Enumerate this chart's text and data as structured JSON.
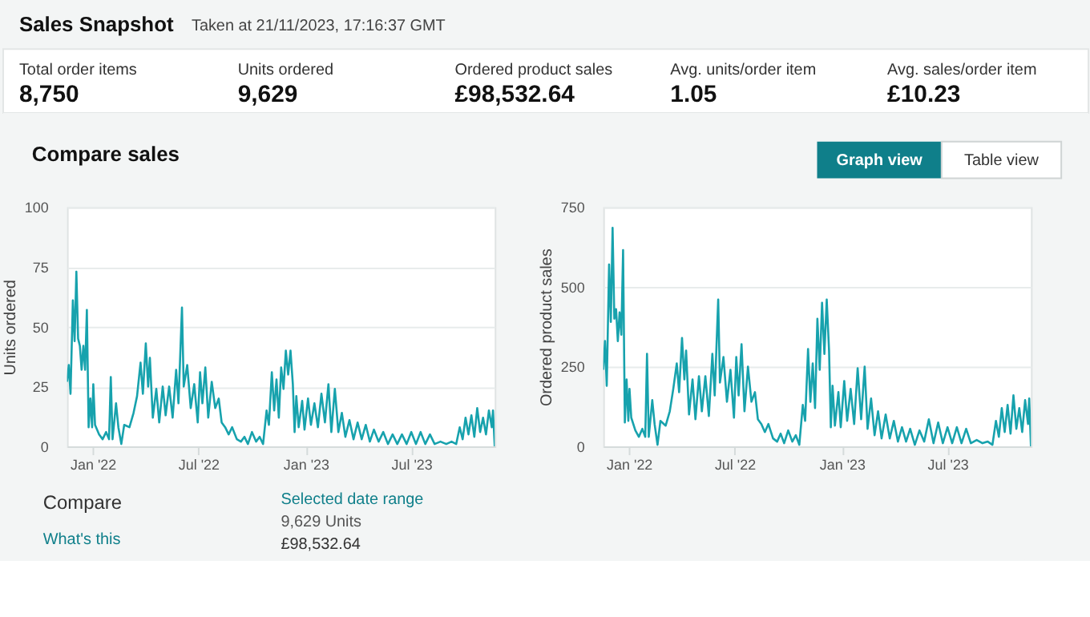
{
  "chart_data": [
    {
      "type": "other",
      "title": "Sales Snapshot",
      "subtitle": "Taken at 21/11/2023, 17:16:37 GMT",
      "annotations": [
        "Total order items",
        "8,750",
        "Units ordered",
        "9,629",
        "Ordered product sales",
        "£98,532.64",
        "Avg. units/order item",
        "1.05",
        "Avg. sales/order item",
        "£10.23",
        "Compare sales",
        "Graph view",
        "Table view"
      ]
    },
    {
      "type": "line",
      "ylabel": "Units ordered",
      "xlim": [
        "2021-11-18",
        "2023-11-21"
      ],
      "xticks": [
        {
          "value": "2022-01-01",
          "label": "Jan '22"
        },
        {
          "value": "2022-07-01",
          "label": "Jul '22"
        },
        {
          "value": "2023-01-01",
          "label": "Jan '23"
        },
        {
          "value": "2023-07-01",
          "label": "Jul '23"
        }
      ],
      "ylim": [
        0,
        100
      ],
      "yticks": [
        0,
        25,
        50,
        75,
        100
      ],
      "grid": "y",
      "x": [
        "2021-11-18",
        "2021-11-21",
        "2021-11-24",
        "2021-11-28",
        "2021-12-01",
        "2021-12-04",
        "2021-12-07",
        "2021-12-10",
        "2021-12-13",
        "2021-12-16",
        "2021-12-19",
        "2021-12-22",
        "2021-12-25",
        "2021-12-28",
        "2021-12-31",
        "2022-01-02",
        "2022-01-05",
        "2022-01-12",
        "2022-01-18",
        "2022-01-24",
        "2022-01-29",
        "2022-02-01",
        "2022-02-04",
        "2022-02-10",
        "2022-02-14",
        "2022-02-19",
        "2022-02-24",
        "2022-03-05",
        "2022-03-12",
        "2022-03-18",
        "2022-03-24",
        "2022-03-28",
        "2022-04-02",
        "2022-04-06",
        "2022-04-09",
        "2022-04-14",
        "2022-04-20",
        "2022-04-25",
        "2022-05-01",
        "2022-05-06",
        "2022-05-12",
        "2022-05-18",
        "2022-05-24",
        "2022-05-28",
        "2022-06-03",
        "2022-06-06",
        "2022-06-12",
        "2022-06-18",
        "2022-06-24",
        "2022-06-30",
        "2022-07-04",
        "2022-07-08",
        "2022-07-13",
        "2022-07-18",
        "2022-07-24",
        "2022-07-30",
        "2022-08-05",
        "2022-08-10",
        "2022-08-16",
        "2022-08-22",
        "2022-08-28",
        "2022-09-05",
        "2022-09-12",
        "2022-09-18",
        "2022-09-24",
        "2022-10-01",
        "2022-10-08",
        "2022-10-14",
        "2022-10-20",
        "2022-10-26",
        "2022-10-30",
        "2022-11-04",
        "2022-11-08",
        "2022-11-12",
        "2022-11-16",
        "2022-11-20",
        "2022-11-24",
        "2022-11-28",
        "2022-12-02",
        "2022-12-06",
        "2022-12-10",
        "2022-12-13",
        "2022-12-16",
        "2022-12-20",
        "2022-12-26",
        "2022-12-30",
        "2023-01-05",
        "2023-01-10",
        "2023-01-16",
        "2023-01-22",
        "2023-01-28",
        "2023-02-03",
        "2023-02-09",
        "2023-02-14",
        "2023-02-20",
        "2023-02-26",
        "2023-03-04",
        "2023-03-10",
        "2023-03-17",
        "2023-03-24",
        "2023-03-31",
        "2023-04-07",
        "2023-04-14",
        "2023-04-21",
        "2023-04-28",
        "2023-05-06",
        "2023-05-14",
        "2023-05-22",
        "2023-05-30",
        "2023-06-07",
        "2023-06-15",
        "2023-06-23",
        "2023-07-01",
        "2023-07-09",
        "2023-07-17",
        "2023-07-25",
        "2023-08-02",
        "2023-08-10",
        "2023-08-20",
        "2023-08-30",
        "2023-09-08",
        "2023-09-16",
        "2023-09-22",
        "2023-09-27",
        "2023-10-02",
        "2023-10-07",
        "2023-10-12",
        "2023-10-17",
        "2023-10-22",
        "2023-10-27",
        "2023-11-01",
        "2023-11-06",
        "2023-11-11",
        "2023-11-16",
        "2023-11-18",
        "2023-11-21"
      ],
      "series": [
        {
          "color": "#17a2ad",
          "values": [
            27,
            34,
            22,
            61,
            44,
            73,
            45,
            42,
            32,
            42,
            32,
            57,
            8,
            20,
            8,
            26,
            9,
            5,
            3,
            6,
            3,
            29,
            3,
            18,
            8,
            1,
            9,
            8,
            14,
            21,
            35,
            22,
            43,
            25,
            37,
            12,
            24,
            10,
            25,
            13,
            25,
            12,
            32,
            18,
            58,
            25,
            34,
            16,
            26,
            10,
            31,
            18,
            33,
            12,
            27,
            16,
            20,
            10,
            8,
            5,
            8,
            3,
            2,
            4,
            1,
            6,
            2,
            4,
            1,
            15,
            9,
            31,
            15,
            28,
            12,
            33,
            24,
            40,
            30,
            40,
            26,
            6,
            21,
            8,
            19,
            7,
            20,
            9,
            18,
            8,
            22,
            10,
            26,
            6,
            24,
            6,
            14,
            4,
            11,
            3,
            10,
            3,
            9,
            2,
            7,
            2,
            6,
            1,
            5,
            1,
            5,
            1,
            6,
            1,
            6,
            1,
            5,
            1,
            2,
            1,
            2,
            1,
            8,
            3,
            12,
            5,
            13,
            4,
            16,
            6,
            12,
            5,
            15,
            8,
            15,
            0
          ]
        }
      ]
    },
    {
      "type": "line",
      "ylabel": "Ordered product sales",
      "xlim": [
        "2021-11-18",
        "2023-11-21"
      ],
      "xticks": [
        {
          "value": "2022-01-01",
          "label": "Jan '22"
        },
        {
          "value": "2022-07-01",
          "label": "Jul '22"
        },
        {
          "value": "2023-01-01",
          "label": "Jan '23"
        },
        {
          "value": "2023-07-01",
          "label": "Jul '23"
        }
      ],
      "ylim": [
        0,
        750
      ],
      "yticks": [
        0,
        250,
        500,
        750
      ],
      "grid": "y",
      "x": [
        "2021-11-18",
        "2021-11-21",
        "2021-11-24",
        "2021-11-28",
        "2021-12-01",
        "2021-12-04",
        "2021-12-07",
        "2021-12-10",
        "2021-12-13",
        "2021-12-16",
        "2021-12-19",
        "2021-12-22",
        "2021-12-25",
        "2021-12-28",
        "2021-12-31",
        "2022-01-02",
        "2022-01-05",
        "2022-01-12",
        "2022-01-18",
        "2022-01-24",
        "2022-01-29",
        "2022-02-01",
        "2022-02-04",
        "2022-02-10",
        "2022-02-14",
        "2022-02-19",
        "2022-02-24",
        "2022-03-05",
        "2022-03-12",
        "2022-03-18",
        "2022-03-24",
        "2022-03-28",
        "2022-04-02",
        "2022-04-06",
        "2022-04-09",
        "2022-04-14",
        "2022-04-20",
        "2022-04-25",
        "2022-05-01",
        "2022-05-06",
        "2022-05-12",
        "2022-05-18",
        "2022-05-24",
        "2022-05-28",
        "2022-06-03",
        "2022-06-06",
        "2022-06-12",
        "2022-06-18",
        "2022-06-24",
        "2022-06-30",
        "2022-07-04",
        "2022-07-08",
        "2022-07-13",
        "2022-07-18",
        "2022-07-24",
        "2022-07-30",
        "2022-08-05",
        "2022-08-10",
        "2022-08-16",
        "2022-08-22",
        "2022-08-28",
        "2022-09-05",
        "2022-09-12",
        "2022-09-18",
        "2022-09-24",
        "2022-10-01",
        "2022-10-08",
        "2022-10-14",
        "2022-10-20",
        "2022-10-26",
        "2022-10-30",
        "2022-11-04",
        "2022-11-08",
        "2022-11-12",
        "2022-11-16",
        "2022-11-20",
        "2022-11-24",
        "2022-11-28",
        "2022-12-02",
        "2022-12-06",
        "2022-12-10",
        "2022-12-13",
        "2022-12-16",
        "2022-12-20",
        "2022-12-26",
        "2022-12-30",
        "2023-01-05",
        "2023-01-10",
        "2023-01-16",
        "2023-01-22",
        "2023-01-28",
        "2023-02-03",
        "2023-02-09",
        "2023-02-14",
        "2023-02-20",
        "2023-02-26",
        "2023-03-04",
        "2023-03-10",
        "2023-03-17",
        "2023-03-24",
        "2023-03-31",
        "2023-04-07",
        "2023-04-14",
        "2023-04-21",
        "2023-04-28",
        "2023-05-06",
        "2023-05-14",
        "2023-05-22",
        "2023-05-30",
        "2023-06-07",
        "2023-06-15",
        "2023-06-23",
        "2023-07-01",
        "2023-07-09",
        "2023-07-17",
        "2023-07-25",
        "2023-08-02",
        "2023-08-10",
        "2023-08-20",
        "2023-08-30",
        "2023-09-08",
        "2023-09-16",
        "2023-09-22",
        "2023-09-27",
        "2023-10-02",
        "2023-10-07",
        "2023-10-12",
        "2023-10-17",
        "2023-10-22",
        "2023-10-27",
        "2023-11-01",
        "2023-11-06",
        "2023-11-11",
        "2023-11-16",
        "2023-11-18",
        "2023-11-21"
      ],
      "series": [
        {
          "color": "#17a2ad",
          "values": [
            240,
            330,
            190,
            570,
            390,
            685,
            400,
            430,
            330,
            420,
            350,
            615,
            75,
            210,
            80,
            180,
            90,
            50,
            30,
            55,
            30,
            290,
            30,
            145,
            70,
            5,
            80,
            65,
            110,
            180,
            260,
            170,
            340,
            210,
            300,
            100,
            210,
            85,
            220,
            110,
            220,
            95,
            290,
            160,
            460,
            200,
            280,
            140,
            240,
            90,
            280,
            160,
            320,
            110,
            250,
            140,
            170,
            85,
            70,
            45,
            70,
            25,
            15,
            40,
            10,
            50,
            15,
            35,
            5,
            130,
            80,
            305,
            140,
            260,
            120,
            400,
            240,
            450,
            290,
            460,
            300,
            60,
            190,
            65,
            170,
            60,
            205,
            80,
            180,
            70,
            245,
            85,
            250,
            55,
            150,
            35,
            110,
            25,
            100,
            25,
            80,
            15,
            60,
            15,
            55,
            5,
            50,
            15,
            85,
            10,
            75,
            10,
            60,
            10,
            60,
            10,
            55,
            10,
            20,
            10,
            15,
            5,
            80,
            30,
            120,
            45,
            130,
            40,
            160,
            55,
            120,
            45,
            145,
            70,
            150,
            0
          ]
        }
      ]
    },
    {
      "type": "other",
      "annotations": [
        "Compare",
        "What's this",
        "Selected date range",
        "9,629 Units",
        "£98,532.64"
      ]
    }
  ]
}
